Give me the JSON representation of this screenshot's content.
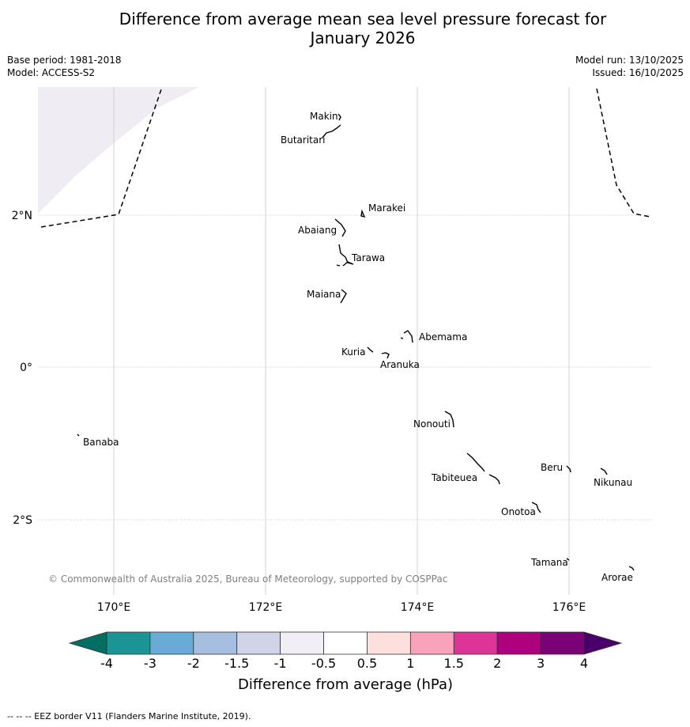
{
  "title": {
    "line1": "Difference from average mean sea level pressure forecast for",
    "line2": "January 2026"
  },
  "meta": {
    "base_period": "Base period: 1981-2018",
    "model": "Model: ACCESS-S2",
    "model_run": "Model run: 13/10/2025",
    "issued": "Issued: 16/10/2025"
  },
  "map": {
    "lon_labels": [
      "170°E",
      "172°E",
      "174°E",
      "176°E"
    ],
    "lat_labels": [
      "2°N",
      "0°",
      "2°S"
    ],
    "copyright": "© Commonwealth of Australia 2025, Bureau of Meteorology, supported by COSPPac",
    "islands": [
      "Makin",
      "Butaritari",
      "Marakei",
      "Abaiang",
      "Tarawa",
      "Maiana",
      "Abemama",
      "Kuria",
      "Aranuka",
      "Nonouti",
      "Banaba",
      "Beru",
      "Nikunau",
      "Tabiteuea",
      "Onotoa",
      "Tamana",
      "Arorae"
    ],
    "anomaly_fill_color": "#f0ecf3"
  },
  "colorbar": {
    "label": "Difference from average (hPa)",
    "ticks": [
      "-4",
      "-3",
      "-2",
      "-1.5",
      "-1",
      "-0.5",
      "0.5",
      "1",
      "1.5",
      "2",
      "3",
      "4"
    ],
    "colors": [
      "#1b9496",
      "#69abd6",
      "#a6bedf",
      "#d1d3e8",
      "#f1eef6",
      "#ffffff",
      "#fde0dd",
      "#f8a3bb",
      "#dd3497",
      "#ae017e",
      "#7a0177"
    ],
    "under_color": "#036e63",
    "over_color": "#49006a"
  },
  "footnote": "--  --  -- EEZ border V11 (Flanders Marine Institute, 2019)."
}
